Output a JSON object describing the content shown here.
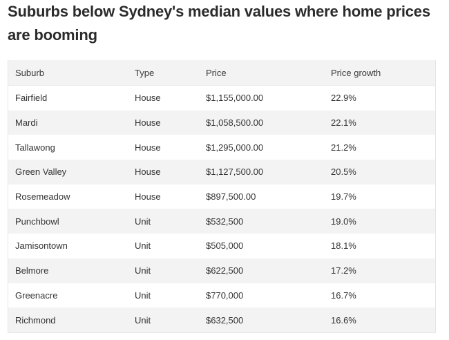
{
  "article": {
    "title": "Suburbs below Sydney's median values where home prices are booming"
  },
  "table": {
    "headers": [
      "Suburb",
      "Type",
      "Price",
      "Price growth"
    ],
    "rows": [
      [
        "Fairfield",
        "House",
        "$1,155,000.00",
        "22.9%"
      ],
      [
        "Mardi",
        "House",
        "$1,058,500.00",
        "22.1%"
      ],
      [
        "Tallawong",
        "House",
        "$1,295,000.00",
        "21.2%"
      ],
      [
        "Green Valley",
        "House",
        "$1,127,500.00",
        "20.5%"
      ],
      [
        "Rosemeadow",
        "House",
        "$897,500.00",
        "19.7%"
      ],
      [
        "Punchbowl",
        "Unit",
        "$532,500",
        "19.0%"
      ],
      [
        "Jamisontown",
        "Unit",
        "$505,000",
        "18.1%"
      ],
      [
        "Belmore",
        "Unit",
        "$622,500",
        "17.2%"
      ],
      [
        "Greenacre",
        "Unit",
        "$770,000",
        "16.7%"
      ],
      [
        "Richmond",
        "Unit",
        "$632,500",
        "16.6%"
      ]
    ]
  }
}
